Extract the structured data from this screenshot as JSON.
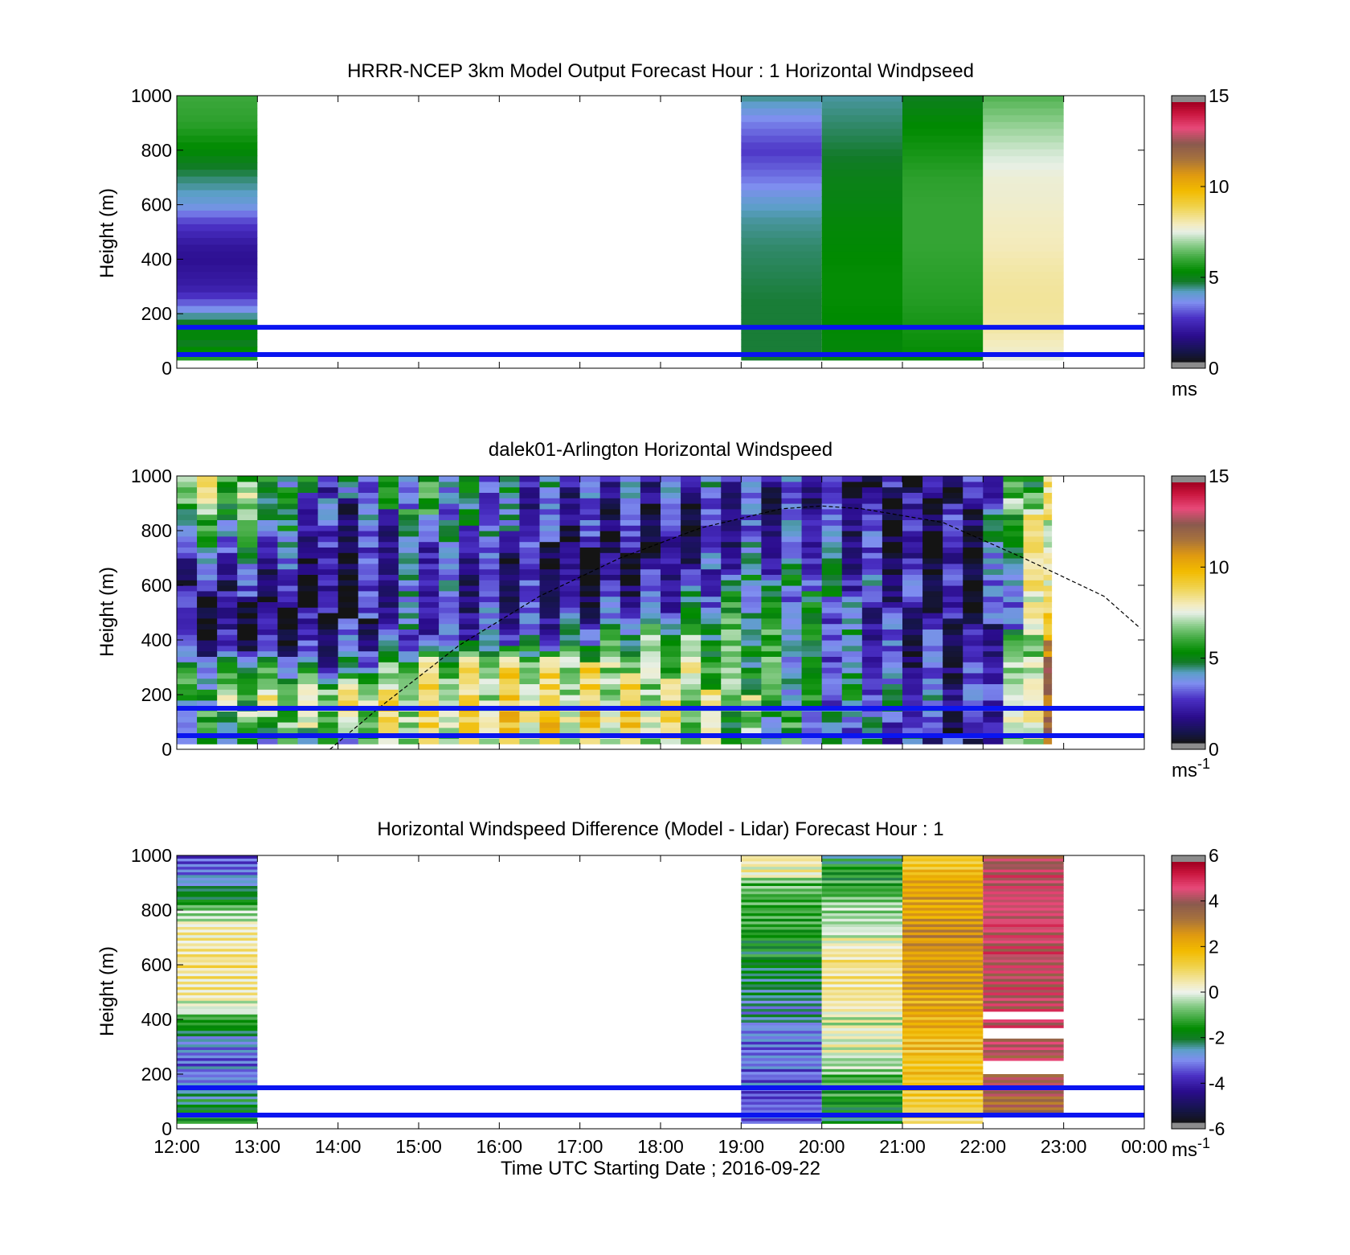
{
  "chart_data": [
    {
      "type": "heatmap",
      "title": "HRRR-NCEP 3km Model Output   Forecast Hour : 1 Horizontal Windpseed",
      "ylabel": "Height (m)",
      "xlabel": "",
      "ylim": [
        0,
        1000
      ],
      "yticks": [
        "0",
        "200",
        "400",
        "600",
        "800",
        "1000"
      ],
      "xlim_hours": [
        12,
        24
      ],
      "colorbar": {
        "ticks": [
          "0",
          "5",
          "10",
          "15"
        ],
        "range": [
          0,
          15
        ],
        "unit": "ms"
      },
      "reference_lines_m": [
        150,
        50
      ],
      "blocks": [
        {
          "time": "12:00",
          "start_hour": 12,
          "levels_m": [
            30,
            50,
            70,
            90,
            110,
            130,
            150,
            170,
            190,
            210,
            250,
            300,
            350,
            400,
            450,
            500,
            550,
            600,
            700,
            800,
            900,
            1000
          ],
          "values": [
            5.5,
            5.8,
            5.2,
            4.8,
            5.0,
            5.3,
            5.0,
            4.7,
            4.3,
            3.7,
            2.8,
            2.0,
            1.8,
            1.6,
            1.8,
            2.3,
            2.9,
            3.8,
            4.4,
            5.2,
            5.8,
            6.0
          ]
        },
        {
          "time": "19:00",
          "start_hour": 19,
          "levels_m": [
            30,
            50,
            150,
            250,
            350,
            450,
            550,
            600,
            700,
            800,
            900,
            1000
          ],
          "values": [
            4.7,
            4.6,
            4.6,
            4.6,
            4.5,
            4.4,
            4.2,
            4.0,
            3.2,
            2.6,
            3.3,
            4.3
          ]
        },
        {
          "time": "20:00",
          "start_hour": 20,
          "levels_m": [
            30,
            50,
            150,
            250,
            350,
            450,
            550,
            600,
            700,
            800,
            900,
            1000
          ],
          "values": [
            5.0,
            5.1,
            5.2,
            5.3,
            5.3,
            5.2,
            5.1,
            5.0,
            4.9,
            4.6,
            4.4,
            4.2
          ]
        },
        {
          "time": "21:00",
          "start_hour": 21,
          "levels_m": [
            30,
            50,
            150,
            250,
            350,
            450,
            550,
            600,
            700,
            800,
            900,
            1000
          ],
          "values": [
            5.0,
            5.3,
            5.5,
            5.7,
            5.8,
            5.9,
            5.9,
            5.9,
            5.8,
            5.5,
            5.2,
            4.8
          ]
        },
        {
          "time": "22:00",
          "start_hour": 22,
          "levels_m": [
            30,
            50,
            150,
            250,
            350,
            450,
            550,
            600,
            700,
            800,
            900,
            1000
          ],
          "values": [
            7.2,
            7.8,
            8.2,
            8.3,
            8.2,
            8.0,
            7.9,
            7.8,
            7.7,
            7.3,
            6.8,
            6.2
          ]
        }
      ]
    },
    {
      "type": "heatmap",
      "title": "dalek01-Arlington  Horizontal Windspeed",
      "ylabel": "Height (m)",
      "xlabel": "",
      "ylim": [
        0,
        1000
      ],
      "yticks": [
        "0",
        "200",
        "400",
        "600",
        "800",
        "1000"
      ],
      "xlim_hours": [
        12,
        24
      ],
      "data_end_hour": 22.85,
      "column_hours": 0.25,
      "colorbar": {
        "ticks": [
          "0",
          "5",
          "10",
          "15"
        ],
        "range": [
          0,
          15
        ],
        "unit": "ms",
        "unit_exp": "-1"
      },
      "reference_lines_m": [
        150,
        50
      ],
      "boundary_curve": {
        "hours": [
          13.9,
          14.5,
          15.5,
          16.5,
          17.5,
          18.5,
          19.5,
          20.0,
          20.5,
          21.5,
          22.5,
          23.5,
          24.0
        ],
        "heights_m": [
          0,
          150,
          380,
          560,
          700,
          810,
          880,
          890,
          880,
          830,
          700,
          560,
          430
        ]
      },
      "profiles": [
        {
          "hour": 12,
          "h": [
            0,
            100,
            200,
            300,
            400,
            500,
            600,
            700,
            800,
            900,
            1000
          ],
          "v": [
            5,
            5,
            6,
            5,
            2,
            2,
            3,
            4,
            5,
            8,
            9
          ]
        },
        {
          "hour": 13,
          "h": [
            0,
            100,
            200,
            300,
            400,
            500,
            600,
            700,
            800,
            900,
            1000
          ],
          "v": [
            5,
            7,
            8,
            6,
            2,
            2,
            3,
            4,
            6,
            7,
            7
          ]
        },
        {
          "hour": 14,
          "h": [
            0,
            100,
            200,
            300,
            400,
            500,
            600,
            700,
            800,
            900,
            1000
          ],
          "v": [
            4,
            8,
            9,
            4,
            3,
            2,
            2,
            2,
            2,
            3,
            4
          ]
        },
        {
          "hour": 15,
          "h": [
            0,
            100,
            200,
            300,
            400,
            500,
            600,
            700,
            800,
            900,
            1000
          ],
          "v": [
            8,
            9,
            9,
            8,
            4,
            4,
            4,
            4,
            5,
            6,
            6
          ]
        },
        {
          "hour": 16,
          "h": [
            0,
            100,
            200,
            300,
            400,
            500,
            600,
            700,
            800,
            900,
            1000
          ],
          "v": [
            9,
            10,
            9,
            9,
            4,
            3,
            3,
            3,
            4,
            4,
            5
          ]
        },
        {
          "hour": 17,
          "h": [
            0,
            100,
            200,
            300,
            400,
            500,
            600,
            700,
            800,
            900,
            1000
          ],
          "v": [
            9,
            10,
            9,
            9,
            5,
            3,
            2,
            2,
            3,
            3,
            4
          ]
        },
        {
          "hour": 18,
          "h": [
            0,
            100,
            200,
            300,
            400,
            500,
            600,
            700,
            800,
            900,
            1000
          ],
          "v": [
            8,
            9,
            9,
            8,
            7,
            4,
            3,
            2,
            2,
            3,
            4
          ]
        },
        {
          "hour": 19,
          "h": [
            0,
            100,
            200,
            300,
            400,
            500,
            600,
            700,
            800,
            900,
            1000
          ],
          "v": [
            7,
            7,
            8,
            7,
            7,
            6,
            5,
            4,
            3,
            3,
            4
          ]
        },
        {
          "hour": 20,
          "h": [
            0,
            100,
            200,
            300,
            400,
            500,
            600,
            700,
            800,
            900,
            1000
          ],
          "v": [
            5,
            5,
            5,
            5,
            5,
            5,
            5,
            4,
            4,
            3,
            3
          ]
        },
        {
          "hour": 21,
          "h": [
            0,
            100,
            200,
            300,
            400,
            500,
            600,
            700,
            800,
            900,
            1000
          ],
          "v": [
            4,
            4,
            4,
            3,
            3,
            3,
            3,
            2,
            2,
            2,
            2
          ]
        },
        {
          "hour": 22,
          "h": [
            0,
            100,
            200,
            300,
            400,
            500,
            600,
            700,
            800,
            900,
            1000
          ],
          "v": [
            3,
            2,
            3,
            3,
            2,
            2,
            2,
            2,
            3,
            3,
            3
          ]
        },
        {
          "hour": 22.5,
          "h": [
            0,
            100,
            200,
            300,
            400,
            500,
            600,
            700,
            800,
            900,
            1000
          ],
          "v": [
            7,
            9,
            9,
            8,
            6,
            6,
            7,
            8,
            9,
            8,
            6
          ]
        },
        {
          "hour": 22.85,
          "h": [
            0,
            100,
            200,
            300,
            400,
            500,
            600,
            700,
            800,
            900,
            1000
          ],
          "v": [
            12,
            12,
            12,
            12,
            11,
            11,
            10,
            10,
            9,
            9,
            8
          ]
        }
      ]
    },
    {
      "type": "heatmap",
      "title": "Horizontal Windspeed Difference (Model - Lidar) Forecast Hour : 1",
      "ylabel": "Height (m)",
      "xlabel": "Time UTC  Starting Date ; 2016-09-22",
      "ylim": [
        0,
        1000
      ],
      "yticks": [
        "0",
        "200",
        "400",
        "600",
        "800",
        "1000"
      ],
      "xticks": [
        "12:00",
        "13:00",
        "14:00",
        "15:00",
        "16:00",
        "17:00",
        "18:00",
        "19:00",
        "20:00",
        "21:00",
        "22:00",
        "23:00",
        "00:00"
      ],
      "xlim_hours": [
        12,
        24
      ],
      "colorbar": {
        "ticks": [
          "-6",
          "-4",
          "-2",
          "0",
          "2",
          "4",
          "6"
        ],
        "range": [
          -6,
          6
        ],
        "unit": "ms",
        "unit_exp": "-1"
      },
      "reference_lines_m": [
        150,
        50
      ],
      "blocks": [
        {
          "time": "12:00",
          "start_hour": 12,
          "h": [
            20,
            100,
            150,
            250,
            350,
            450,
            550,
            650,
            750,
            850,
            950,
            1000
          ],
          "v": [
            -1,
            -1.5,
            -2.5,
            -3,
            -2,
            0.5,
            1,
            1.2,
            0.5,
            -1.5,
            -3,
            -3.5
          ]
        },
        {
          "time": "19:00",
          "start_hour": 19,
          "h": [
            20,
            100,
            200,
            300,
            400,
            500,
            600,
            700,
            800,
            900,
            950,
            1000
          ],
          "v": [
            -3,
            -3,
            -3,
            -2.8,
            -2.5,
            -2,
            -1.5,
            -1.2,
            -1,
            -0.5,
            0.8,
            1.2
          ]
        },
        {
          "time": "20:00",
          "start_hour": 20,
          "h": [
            20,
            100,
            200,
            300,
            400,
            500,
            600,
            700,
            800,
            900,
            1000
          ],
          "v": [
            -1.5,
            -1.2,
            -0.5,
            0.5,
            0.3,
            1.0,
            1.2,
            0.5,
            -0.2,
            -1.0,
            -1.5
          ]
        },
        {
          "time": "21:00",
          "start_hour": 21,
          "h": [
            20,
            100,
            200,
            300,
            400,
            500,
            600,
            700,
            800,
            900,
            1000
          ],
          "v": [
            1.5,
            1.5,
            2,
            2.2,
            2.5,
            2.8,
            3,
            3.2,
            3,
            2.5,
            2
          ]
        },
        {
          "time": "22:00",
          "start_hour": 22,
          "h": [
            30,
            100,
            200,
            300,
            400,
            500,
            600,
            700,
            800,
            900,
            1000
          ],
          "v": [
            4,
            4.2,
            4.6,
            4.8,
            5,
            5,
            5,
            5,
            5.2,
            5,
            4.5
          ],
          "gaps_m": [
            [
              30,
              60
            ],
            [
              200,
              250
            ],
            [
              330,
              370
            ],
            [
              400,
              430
            ]
          ]
        }
      ]
    }
  ]
}
